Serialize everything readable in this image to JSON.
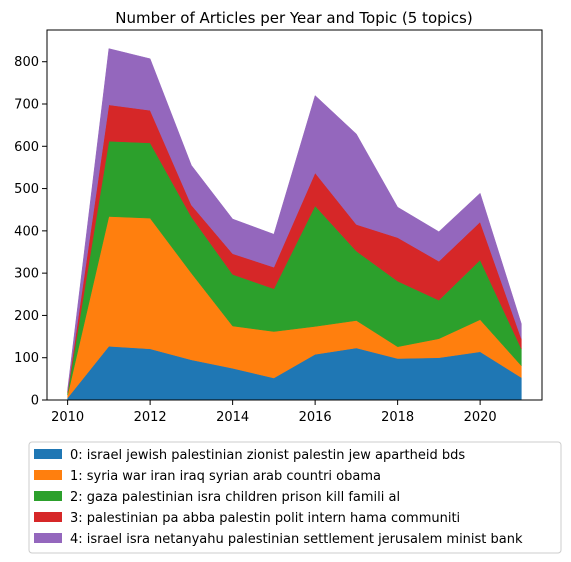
{
  "chart_data": {
    "type": "area",
    "stacked": true,
    "title": "Number of Articles per Year and Topic (5 topics)",
    "xlabel": "",
    "ylabel": "",
    "x": [
      2010,
      2011,
      2012,
      2013,
      2014,
      2015,
      2016,
      2017,
      2018,
      2019,
      2020,
      2021
    ],
    "xlim": [
      2009.5,
      2021.5
    ],
    "ylim": [
      0,
      875
    ],
    "xticks": [
      "2010",
      "2012",
      "2014",
      "2016",
      "2018",
      "2020"
    ],
    "yticks": [
      "0",
      "100",
      "200",
      "300",
      "400",
      "500",
      "600",
      "700",
      "800"
    ],
    "grid": false,
    "legend_placement": "below",
    "series": [
      {
        "name": "0: israel jewish palestinian zionist palestin jew apartheid bds",
        "color": "#1f77b4",
        "values": [
          5,
          127,
          121,
          95,
          75,
          52,
          108,
          123,
          98,
          100,
          114,
          53
        ]
      },
      {
        "name": "1: syria war iran iraq syrian arab countri obama",
        "color": "#ff7f0e",
        "values": [
          7,
          307,
          309,
          205,
          100,
          110,
          66,
          65,
          28,
          45,
          76,
          28
        ]
      },
      {
        "name": "2: gaza palestinian isra children prison kill famili al",
        "color": "#2ca02c",
        "values": [
          6,
          178,
          178,
          133,
          122,
          101,
          285,
          164,
          155,
          91,
          141,
          40
        ]
      },
      {
        "name": "3: palestinian pa abba palestin polit intern hama communiti",
        "color": "#d62728",
        "values": [
          3,
          86,
          77,
          28,
          49,
          51,
          78,
          63,
          103,
          92,
          90,
          24
        ]
      },
      {
        "name": "4: israel isra netanyahu palestinian settlement jerusalem minist bank",
        "color": "#9467bd",
        "values": [
          4,
          133,
          122,
          94,
          82,
          78,
          183,
          214,
          72,
          70,
          68,
          35
        ]
      }
    ]
  }
}
